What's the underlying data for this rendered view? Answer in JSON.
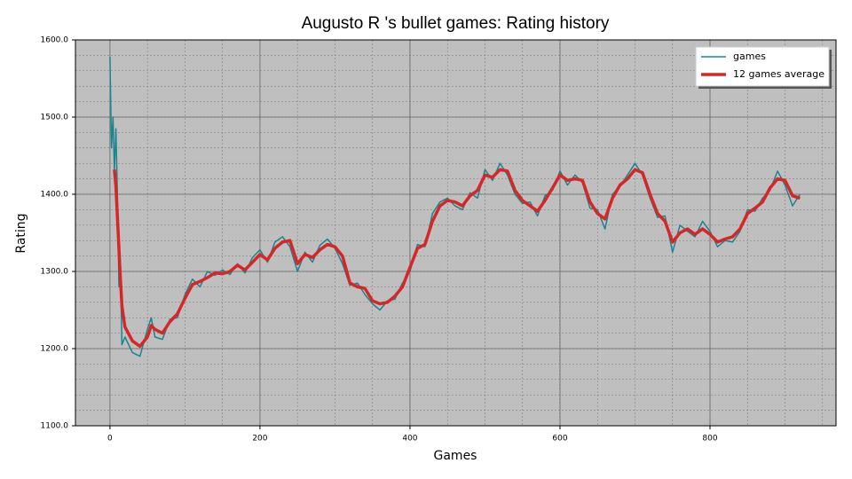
{
  "chart_data": {
    "type": "line",
    "title": "Augusto R 's bullet games: Rating history",
    "x_label": "Games",
    "y_label": "Rating",
    "x": [
      0,
      2,
      4,
      6,
      8,
      10,
      12,
      14,
      16,
      20,
      30,
      40,
      50,
      55,
      60,
      70,
      80,
      90,
      100,
      110,
      120,
      130,
      140,
      150,
      160,
      170,
      180,
      190,
      200,
      210,
      220,
      230,
      240,
      250,
      260,
      270,
      280,
      290,
      300,
      310,
      320,
      330,
      340,
      350,
      360,
      370,
      380,
      390,
      400,
      410,
      420,
      430,
      440,
      450,
      460,
      470,
      480,
      490,
      500,
      510,
      520,
      530,
      540,
      550,
      560,
      570,
      580,
      590,
      600,
      610,
      620,
      630,
      640,
      650,
      660,
      670,
      680,
      690,
      700,
      710,
      720,
      730,
      740,
      750,
      760,
      770,
      780,
      790,
      800,
      810,
      820,
      830,
      840,
      850,
      860,
      870,
      880,
      890,
      900,
      910,
      920
    ],
    "series": [
      {
        "name": "games",
        "color": "#1a8590",
        "width": 1.5,
        "values": [
          1578,
          1460,
          1500,
          1430,
          1485,
          1400,
          1280,
          1300,
          1205,
          1215,
          1195,
          1190,
          1225,
          1240,
          1215,
          1212,
          1238,
          1240,
          1270,
          1290,
          1280,
          1300,
          1295,
          1302,
          1296,
          1310,
          1298,
          1318,
          1328,
          1312,
          1338,
          1345,
          1332,
          1300,
          1325,
          1312,
          1334,
          1342,
          1330,
          1310,
          1282,
          1285,
          1270,
          1258,
          1250,
          1262,
          1264,
          1285,
          1300,
          1335,
          1332,
          1375,
          1390,
          1395,
          1385,
          1380,
          1402,
          1395,
          1432,
          1418,
          1440,
          1425,
          1400,
          1388,
          1390,
          1372,
          1398,
          1405,
          1430,
          1412,
          1425,
          1415,
          1382,
          1380,
          1355,
          1400,
          1410,
          1425,
          1440,
          1425,
          1395,
          1370,
          1372,
          1325,
          1360,
          1352,
          1345,
          1365,
          1352,
          1332,
          1340,
          1338,
          1352,
          1380,
          1378,
          1395,
          1405,
          1430,
          1412,
          1385,
          1400
        ]
      },
      {
        "name": "12 games average",
        "color": "#d62728",
        "width": 3.5,
        "values": [
          null,
          null,
          null,
          1432,
          1410,
          1370,
          1330,
          1290,
          1255,
          1228,
          1210,
          1203,
          1215,
          1230,
          1225,
          1220,
          1235,
          1245,
          1265,
          1283,
          1287,
          1292,
          1298,
          1297,
          1300,
          1308,
          1302,
          1312,
          1322,
          1315,
          1330,
          1338,
          1340,
          1310,
          1322,
          1318,
          1328,
          1335,
          1332,
          1320,
          1285,
          1280,
          1278,
          1262,
          1258,
          1260,
          1268,
          1280,
          1305,
          1330,
          1335,
          1365,
          1385,
          1392,
          1390,
          1385,
          1398,
          1405,
          1425,
          1422,
          1432,
          1430,
          1405,
          1392,
          1385,
          1378,
          1392,
          1408,
          1425,
          1418,
          1420,
          1418,
          1390,
          1375,
          1368,
          1395,
          1412,
          1420,
          1432,
          1428,
          1400,
          1375,
          1365,
          1338,
          1350,
          1355,
          1348,
          1355,
          1348,
          1338,
          1342,
          1345,
          1355,
          1375,
          1382,
          1390,
          1408,
          1420,
          1418,
          1398,
          1395
        ]
      }
    ],
    "xlim": [
      -46,
      968
    ],
    "ylim": [
      1100,
      1600
    ],
    "xticks": [
      0,
      200,
      400,
      600,
      800
    ],
    "yticks": [
      {
        "value": 1100,
        "label": "1100.0"
      },
      {
        "value": 1200,
        "label": "1200.0"
      },
      {
        "value": 1300,
        "label": "1300.0"
      },
      {
        "value": 1400,
        "label": "1400.0"
      },
      {
        "value": 1500,
        "label": "1500.0"
      },
      {
        "value": 1600,
        "label": "1600.0"
      }
    ],
    "grid": true,
    "legend": "upper right",
    "background": "#bfbfbf"
  }
}
